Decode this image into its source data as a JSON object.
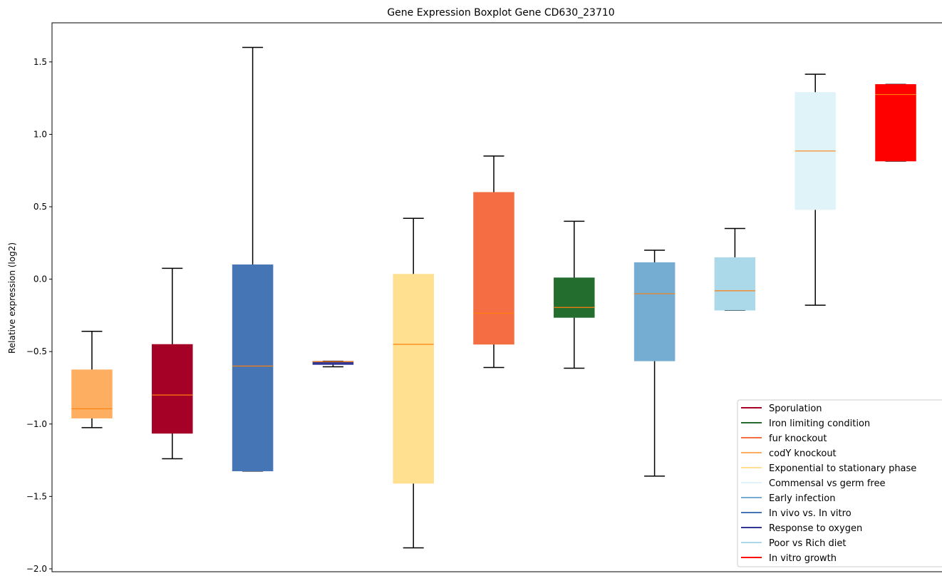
{
  "chart_data": {
    "type": "boxplot",
    "title": "Gene Expression Boxplot Gene CD630_23710",
    "xlabel": "",
    "ylabel": "Relative expression (log2)",
    "ylim": [
      -2.02,
      1.77
    ],
    "yticks": [
      -2.0,
      -1.5,
      -1.0,
      -0.5,
      0.0,
      0.5,
      1.0,
      1.5
    ],
    "ytick_labels": [
      "−2.0",
      "−1.5",
      "−1.0",
      "−0.5",
      "0.0",
      "0.5",
      "1.0",
      "1.5"
    ],
    "grid": false,
    "legend_position": "lower-right",
    "median_color": "#ff7f0e",
    "series": [
      {
        "name": "codY knockout",
        "color": "#fdae61",
        "whisker_low": -1.025,
        "q1": -0.96,
        "median": -0.895,
        "q3": -0.625,
        "whisker_high": -0.36
      },
      {
        "name": "Sporulation",
        "color": "#a50026",
        "whisker_low": -1.24,
        "q1": -1.065,
        "median": -0.8,
        "q3": -0.45,
        "whisker_high": 0.075
      },
      {
        "name": "In vivo vs. In vitro",
        "color": "#4575b4",
        "whisker_low": -1.325,
        "q1": -1.325,
        "median": -0.6,
        "q3": 0.1,
        "whisker_high": 1.6
      },
      {
        "name": "Response to oxygen",
        "color": "#313695",
        "whisker_low": -0.605,
        "q1": -0.59,
        "median": -0.57,
        "q3": -0.567,
        "whisker_high": -0.567
      },
      {
        "name": "Exponential to stationary phase",
        "color": "#fee090",
        "whisker_low": -1.855,
        "q1": -1.41,
        "median": -0.45,
        "q3": 0.035,
        "whisker_high": 0.42
      },
      {
        "name": "fur knockout",
        "color": "#f46d43",
        "whisker_low": -0.61,
        "q1": -0.45,
        "median": -0.235,
        "q3": 0.6,
        "whisker_high": 0.85
      },
      {
        "name": "Iron limiting condition",
        "color": "#236e2e",
        "whisker_low": -0.615,
        "q1": -0.265,
        "median": -0.195,
        "q3": 0.01,
        "whisker_high": 0.4
      },
      {
        "name": "Early infection",
        "color": "#74add1",
        "whisker_low": -1.36,
        "q1": -0.565,
        "median": -0.1,
        "q3": 0.115,
        "whisker_high": 0.2
      },
      {
        "name": "Poor vs Rich diet",
        "color": "#abd9e9",
        "whisker_low": -0.215,
        "q1": -0.215,
        "median": -0.08,
        "q3": 0.15,
        "whisker_high": 0.35
      },
      {
        "name": "Commensal vs germ free",
        "color": "#e0f3f8",
        "whisker_low": -0.18,
        "q1": 0.48,
        "median": 0.885,
        "q3": 1.29,
        "whisker_high": 1.415
      },
      {
        "name": "In vitro growth",
        "color": "#ff0000",
        "whisker_low": 0.815,
        "q1": 0.815,
        "median": 1.275,
        "q3": 1.345,
        "whisker_high": 1.345
      }
    ],
    "legend": [
      {
        "label": "Sporulation",
        "color": "#a50026"
      },
      {
        "label": "Iron limiting condition",
        "color": "#236e2e"
      },
      {
        "label": "fur knockout",
        "color": "#f46d43"
      },
      {
        "label": "codY knockout",
        "color": "#fdae61"
      },
      {
        "label": "Exponential to stationary phase",
        "color": "#fee090"
      },
      {
        "label": "Commensal vs germ free",
        "color": "#e0f3f8"
      },
      {
        "label": "Early infection",
        "color": "#74add1"
      },
      {
        "label": "In vivo vs. In vitro",
        "color": "#4575b4"
      },
      {
        "label": "Response to oxygen",
        "color": "#313695"
      },
      {
        "label": "Poor vs Rich diet",
        "color": "#abd9e9"
      },
      {
        "label": "In vitro growth",
        "color": "#ff0000"
      }
    ]
  }
}
